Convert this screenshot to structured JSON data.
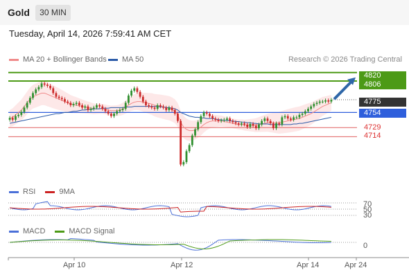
{
  "header": {
    "instrument": "Gold",
    "timeframe": "30 MIN"
  },
  "timestamp": "Tuesday, April 14, 2026 7:59:41 AM CET",
  "legend": {
    "ma20": "MA 20 + Bollinger Bands",
    "ma50": "MA 50",
    "research": "Research © 2026 Trading Central",
    "rsi": "RSI",
    "rsi_ma": "9MA",
    "macd": "MACD",
    "macd_signal": "MACD Signal"
  },
  "colors": {
    "candle_up": "#2f8f2f",
    "candle_down": "#cc2a2a",
    "ma20": "#f08a8a",
    "ma50": "#2a5aa8",
    "bollinger_fill": "#fde2e2",
    "resistance": "#4c9a16",
    "pivot": "#2f5fdc",
    "support": "#e06060",
    "arrow": "#2f67a8",
    "rsi": "#4a6fd8",
    "rsi_ma": "#cc2222",
    "macd": "#4a6fd8",
    "macd_signal": "#4c9a16"
  },
  "price_levels": [
    {
      "label": "4820",
      "value": 4820,
      "kind": "resistance"
    },
    {
      "label": "4806",
      "value": 4806,
      "kind": "resistance"
    },
    {
      "label": "4775",
      "value": 4775,
      "kind": "last"
    },
    {
      "label": "4754",
      "value": 4754,
      "kind": "pivot"
    },
    {
      "label": "4729",
      "value": 4729,
      "kind": "support"
    },
    {
      "label": "4714",
      "value": 4714,
      "kind": "support"
    }
  ],
  "rsi_levels": [
    "70",
    "50",
    "30"
  ],
  "macd_levels": [
    "0"
  ],
  "x_labels": [
    "Apr 10",
    "Apr 12",
    "Apr 14",
    "Apr 24"
  ],
  "chart_data": {
    "type": "candlestick",
    "ylim": [
      4640,
      4830
    ],
    "candles_close": [
      4745,
      4742,
      4748,
      4750,
      4755,
      4762,
      4770,
      4778,
      4786,
      4792,
      4796,
      4802,
      4800,
      4798,
      4794,
      4786,
      4780,
      4778,
      4776,
      4772,
      4770,
      4766,
      4768,
      4770,
      4766,
      4762,
      4764,
      4758,
      4760,
      4762,
      4766,
      4764,
      4760,
      4756,
      4752,
      4748,
      4752,
      4756,
      4758,
      4760,
      4770,
      4782,
      4790,
      4794,
      4788,
      4780,
      4772,
      4766,
      4764,
      4762,
      4760,
      4766,
      4764,
      4762,
      4758,
      4762,
      4758,
      4752,
      4740,
      4668,
      4672,
      4690,
      4700,
      4716,
      4726,
      4738,
      4748,
      4754,
      4752,
      4748,
      4744,
      4742,
      4740,
      4741,
      4742,
      4744,
      4740,
      4738,
      4736,
      4734,
      4736,
      4734,
      4730,
      4735,
      4732,
      4728,
      4734,
      4740,
      4744,
      4740,
      4736,
      4728,
      4736,
      4734,
      4746,
      4748,
      4744,
      4742,
      4746,
      4746,
      4750,
      4752,
      4756,
      4760,
      4764,
      4768,
      4770,
      4772,
      4772,
      4774,
      4772,
      4775
    ],
    "ma20": [
      4744,
      4746,
      4750,
      4754,
      4758,
      4764,
      4770,
      4776,
      4780,
      4782,
      4784,
      4786,
      4786,
      4784,
      4782,
      4780,
      4778,
      4776,
      4774,
      4772,
      4770,
      4768,
      4767,
      4766,
      4765,
      4764,
      4763,
      4762,
      4761,
      4760,
      4760,
      4760,
      4760,
      4759,
      4758,
      4757,
      4757,
      4757,
      4758,
      4760,
      4763,
      4766,
      4769,
      4771,
      4772,
      4772,
      4771,
      4770,
      4769,
      4768,
      4766,
      4765,
      4764,
      4763,
      4762,
      4761,
      4759,
      4756,
      4750,
      4738,
      4730,
      4726,
      4724,
      4724,
      4725,
      4727,
      4730,
      4734,
      4737,
      4739,
      4740,
      4740,
      4740,
      4740,
      4739,
      4738,
      4737,
      4736,
      4735,
      4734,
      4734,
      4733,
      4733,
      4733,
      4733,
      4733,
      4734,
      4735,
      4736,
      4737,
      4737,
      4737,
      4737,
      4737,
      4738,
      4739,
      4740,
      4741,
      4742,
      4743,
      4744,
      4746,
      4748,
      4750,
      4752,
      4755,
      4758,
      4761,
      4764,
      4766,
      4768,
      4770
    ],
    "ma50": [
      4736,
      4737,
      4738,
      4739,
      4740,
      4741,
      4742,
      4743,
      4744,
      4745,
      4746,
      4747,
      4748,
      4749,
      4750,
      4751,
      4752,
      4752,
      4753,
      4754,
      4754,
      4755,
      4756,
      4756,
      4757,
      4758,
      4758,
      4759,
      4759,
      4760,
      4760,
      4760,
      4761,
      4761,
      4761,
      4762,
      4762,
      4762,
      4762,
      4762,
      4763,
      4763,
      4763,
      4764,
      4764,
      4764,
      4764,
      4764,
      4764,
      4764,
      4764,
      4764,
      4763,
      4763,
      4762,
      4762,
      4761,
      4760,
      4758,
      4754,
      4752,
      4750,
      4748,
      4747,
      4746,
      4746,
      4745,
      4745,
      4744,
      4744,
      4744,
      4743,
      4742,
      4742,
      4741,
      4741,
      4740,
      4740,
      4739,
      4739,
      4738,
      4738,
      4737,
      4737,
      4736,
      4736,
      4735,
      4735,
      4735,
      4735,
      4734,
      4734,
      4734,
      4734,
      4734,
      4734,
      4734,
      4734,
      4735,
      4735,
      4736,
      4736,
      4737,
      4738,
      4739,
      4740,
      4741,
      4742,
      4743,
      4744,
      4745,
      4746
    ],
    "resistance": [
      4820,
      4806
    ],
    "pivot": 4754,
    "support": [
      4729,
      4714
    ],
    "last": 4775,
    "rsi_levels": [
      70,
      50,
      30
    ],
    "macd_zero": 0
  }
}
